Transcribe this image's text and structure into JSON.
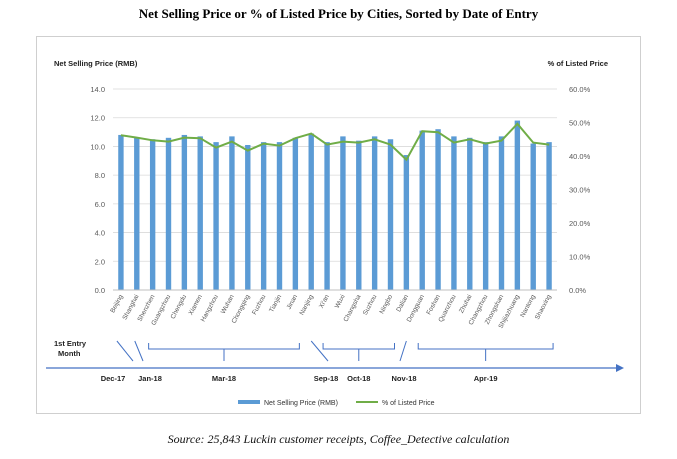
{
  "title": "Net Selling Price or % of Listed Price by Cities, Sorted by Date of Entry",
  "source": "Source: 25,843 Luckin customer receipts, Coffee_Detective calculation",
  "colors": {
    "bar": "#5b9bd5",
    "line": "#70ad47",
    "timeline": "#4472c4",
    "grid": "#d9d9d9",
    "axis_text": "#595959"
  },
  "chart_data": {
    "type": "bar",
    "title": "Net Selling Price or % of Listed Price by Cities, Sorted by Date of Entry",
    "ylabel": "Net Selling Price (RMB)",
    "y2label": "% of Listed Price",
    "ylim": [
      0,
      14
    ],
    "y_ticks": [
      "0.0",
      "2.0",
      "4.0",
      "6.0",
      "8.0",
      "10.0",
      "12.0",
      "14.0"
    ],
    "y2lim": [
      0,
      0.6
    ],
    "y2_ticks": [
      "0.0%",
      "10.0%",
      "20.0%",
      "30.0%",
      "40.0%",
      "50.0%",
      "60.0%"
    ],
    "grid": true,
    "legend_position": "bottom",
    "categories": [
      "Beijing",
      "Shanghai",
      "Shenzhen",
      "Guangzhou",
      "Chengdu",
      "Xiamen",
      "Hangzhou",
      "Wuhan",
      "Chongqing",
      "Fuzhou",
      "Tianjin",
      "Jinan",
      "Nanjing",
      "Xi'an",
      "Wuxi",
      "Changsha",
      "Suzhou",
      "Ningbo",
      "Dalian",
      "Dongguan",
      "Foshan",
      "Quanzhou",
      "Zhuhai",
      "Changzhou",
      "Zhongshan",
      "Shijiazhuang",
      "Nantong",
      "Shaoxing"
    ],
    "series": [
      {
        "name": "Net Selling Price (RMB)",
        "type": "bar",
        "axis": "left",
        "values": [
          10.8,
          10.6,
          10.5,
          10.6,
          10.8,
          10.7,
          10.3,
          10.7,
          10.1,
          10.3,
          10.3,
          10.6,
          10.9,
          10.3,
          10.7,
          10.4,
          10.7,
          10.5,
          9.4,
          11.1,
          11.2,
          10.7,
          10.6,
          10.3,
          10.7,
          11.8,
          10.2,
          10.3
        ]
      },
      {
        "name": "% of Listed Price",
        "type": "line",
        "axis": "right",
        "values": [
          0.462,
          0.455,
          0.447,
          0.443,
          0.455,
          0.453,
          0.425,
          0.443,
          0.416,
          0.437,
          0.431,
          0.453,
          0.467,
          0.434,
          0.443,
          0.44,
          0.45,
          0.434,
          0.389,
          0.474,
          0.471,
          0.44,
          0.45,
          0.437,
          0.446,
          0.496,
          0.44,
          0.434
        ]
      }
    ]
  },
  "timeline": {
    "label_line1": "1st Entry",
    "label_line2": "Month",
    "months": [
      "Dec-17",
      "Jan-18",
      "Mar-18",
      "Sep-18",
      "Oct-18",
      "Nov-18",
      "Apr-19"
    ]
  }
}
